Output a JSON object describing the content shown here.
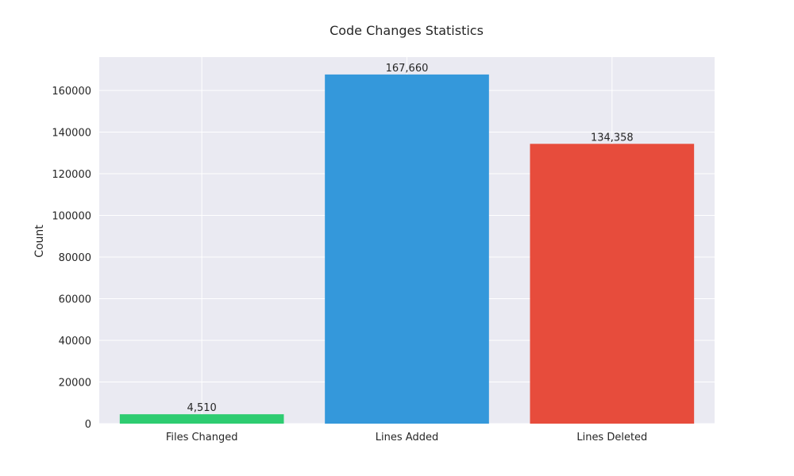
{
  "chart_data": {
    "type": "bar",
    "title": "Code Changes Statistics",
    "xlabel": "",
    "ylabel": "Count",
    "categories": [
      "Files Changed",
      "Lines Added",
      "Lines Deleted"
    ],
    "values": [
      4510,
      167660,
      134358
    ],
    "value_labels": [
      "4,510",
      "167,660",
      "134,358"
    ],
    "colors": [
      "#2ecc71",
      "#3498db",
      "#e74c3c"
    ],
    "ylim": [
      0,
      176000
    ],
    "yticks": [
      0,
      20000,
      40000,
      60000,
      80000,
      100000,
      120000,
      140000,
      160000
    ],
    "grid": true,
    "style": {
      "plot_bg": "#eaeaf2",
      "grid_color": "#ffffff"
    }
  }
}
